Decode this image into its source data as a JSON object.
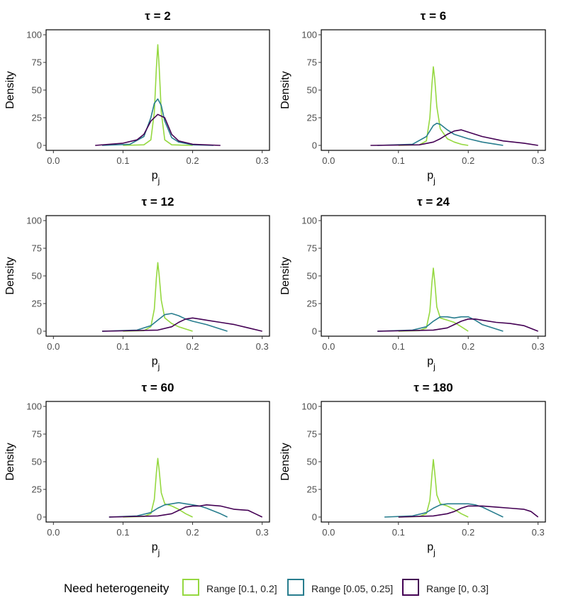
{
  "chart_data": [
    {
      "type": "line",
      "title": "τ = 2",
      "xlabel": "p",
      "xlabel_sub": "j",
      "ylabel": "Density",
      "xlim": [
        0,
        0.3
      ],
      "ylim": [
        0,
        100
      ],
      "xticks": [
        "0.0",
        "0.1",
        "0.2",
        "0.3"
      ],
      "yticks": [
        "0",
        "25",
        "50",
        "75",
        "100"
      ],
      "series": [
        {
          "name": "Range [0.1, 0.2]",
          "x": [
            0.1,
            0.13,
            0.14,
            0.145,
            0.148,
            0.15,
            0.152,
            0.155,
            0.16,
            0.17,
            0.2
          ],
          "y": [
            0,
            0.5,
            5,
            30,
            70,
            91,
            70,
            30,
            5,
            0.5,
            0
          ]
        },
        {
          "name": "Range [0.05, 0.25]",
          "x": [
            0.07,
            0.11,
            0.13,
            0.14,
            0.145,
            0.15,
            0.155,
            0.16,
            0.17,
            0.18,
            0.2,
            0.23
          ],
          "y": [
            0,
            1,
            8,
            25,
            38,
            42,
            36,
            22,
            7,
            3,
            0.5,
            0
          ]
        },
        {
          "name": "Range [0, 0.3]",
          "x": [
            0.06,
            0.1,
            0.12,
            0.13,
            0.14,
            0.15,
            0.16,
            0.17,
            0.18,
            0.2,
            0.24
          ],
          "y": [
            0,
            2,
            5,
            10,
            22,
            28,
            25,
            10,
            4,
            1,
            0
          ]
        }
      ]
    },
    {
      "type": "line",
      "title": "τ = 6",
      "xlabel": "p",
      "xlabel_sub": "j",
      "ylabel": "Density",
      "xlim": [
        0,
        0.3
      ],
      "ylim": [
        0,
        100
      ],
      "xticks": [
        "0.0",
        "0.1",
        "0.2",
        "0.3"
      ],
      "yticks": [
        "0",
        "25",
        "50",
        "75",
        "100"
      ],
      "series": [
        {
          "name": "Range [0.1, 0.2]",
          "x": [
            0.1,
            0.13,
            0.14,
            0.145,
            0.148,
            0.15,
            0.152,
            0.155,
            0.16,
            0.17,
            0.18,
            0.19,
            0.2
          ],
          "y": [
            0,
            0.5,
            4,
            25,
            55,
            71,
            60,
            35,
            15,
            6,
            3,
            1,
            0
          ]
        },
        {
          "name": "Range [0.05, 0.25]",
          "x": [
            0.07,
            0.12,
            0.14,
            0.15,
            0.155,
            0.16,
            0.17,
            0.18,
            0.2,
            0.22,
            0.24,
            0.25
          ],
          "y": [
            0,
            1,
            8,
            18,
            20,
            19,
            14,
            10,
            6,
            3,
            1,
            0
          ]
        },
        {
          "name": "Range [0, 0.3]",
          "x": [
            0.06,
            0.13,
            0.15,
            0.16,
            0.17,
            0.18,
            0.19,
            0.2,
            0.22,
            0.25,
            0.28,
            0.3
          ],
          "y": [
            0,
            0.5,
            3,
            6,
            10,
            13,
            14,
            12,
            8,
            4,
            2,
            0
          ]
        }
      ]
    },
    {
      "type": "line",
      "title": "τ = 12",
      "xlabel": "p",
      "xlabel_sub": "j",
      "ylabel": "Density",
      "xlim": [
        0,
        0.3
      ],
      "ylim": [
        0,
        100
      ],
      "xticks": [
        "0.0",
        "0.1",
        "0.2",
        "0.3"
      ],
      "yticks": [
        "0",
        "25",
        "50",
        "75",
        "100"
      ],
      "series": [
        {
          "name": "Range [0.1, 0.2]",
          "x": [
            0.1,
            0.13,
            0.14,
            0.145,
            0.148,
            0.15,
            0.152,
            0.155,
            0.16,
            0.17,
            0.18,
            0.19,
            0.2
          ],
          "y": [
            0,
            0.5,
            4,
            20,
            48,
            62,
            50,
            28,
            12,
            7,
            4,
            2,
            0
          ]
        },
        {
          "name": "Range [0.05, 0.25]",
          "x": [
            0.07,
            0.12,
            0.14,
            0.15,
            0.16,
            0.17,
            0.18,
            0.19,
            0.2,
            0.22,
            0.24,
            0.25
          ],
          "y": [
            0,
            1,
            5,
            10,
            15,
            16,
            14,
            11,
            9,
            6,
            2,
            0
          ]
        },
        {
          "name": "Range [0, 0.3]",
          "x": [
            0.07,
            0.15,
            0.17,
            0.18,
            0.19,
            0.2,
            0.21,
            0.22,
            0.24,
            0.26,
            0.28,
            0.3
          ],
          "y": [
            0,
            1,
            4,
            8,
            11,
            12,
            11,
            10,
            8,
            6,
            3,
            0
          ]
        }
      ]
    },
    {
      "type": "line",
      "title": "τ = 24",
      "xlabel": "p",
      "xlabel_sub": "j",
      "ylabel": "Density",
      "xlim": [
        0,
        0.3
      ],
      "ylim": [
        0,
        100
      ],
      "xticks": [
        "0.0",
        "0.1",
        "0.2",
        "0.3"
      ],
      "yticks": [
        "0",
        "25",
        "50",
        "75",
        "100"
      ],
      "series": [
        {
          "name": "Range [0.1, 0.2]",
          "x": [
            0.1,
            0.13,
            0.14,
            0.145,
            0.148,
            0.15,
            0.152,
            0.155,
            0.16,
            0.17,
            0.18,
            0.19,
            0.2
          ],
          "y": [
            0,
            0.5,
            3,
            18,
            44,
            57,
            45,
            22,
            12,
            10,
            8,
            4,
            0
          ]
        },
        {
          "name": "Range [0.05, 0.25]",
          "x": [
            0.07,
            0.12,
            0.14,
            0.15,
            0.16,
            0.17,
            0.18,
            0.19,
            0.2,
            0.21,
            0.22,
            0.24,
            0.25
          ],
          "y": [
            0,
            1,
            4,
            9,
            13,
            13,
            12,
            13,
            13,
            10,
            6,
            2,
            0
          ]
        },
        {
          "name": "Range [0, 0.3]",
          "x": [
            0.07,
            0.15,
            0.17,
            0.18,
            0.19,
            0.2,
            0.21,
            0.22,
            0.24,
            0.26,
            0.28,
            0.3
          ],
          "y": [
            0,
            1,
            3,
            6,
            9,
            11,
            11,
            10,
            8,
            7,
            5,
            0
          ]
        }
      ]
    },
    {
      "type": "line",
      "title": "τ = 60",
      "xlabel": "p",
      "xlabel_sub": "j",
      "ylabel": "Density",
      "xlim": [
        0,
        0.3
      ],
      "ylim": [
        0,
        100
      ],
      "xticks": [
        "0.0",
        "0.1",
        "0.2",
        "0.3"
      ],
      "yticks": [
        "0",
        "25",
        "50",
        "75",
        "100"
      ],
      "series": [
        {
          "name": "Range [0.1, 0.2]",
          "x": [
            0.1,
            0.13,
            0.14,
            0.145,
            0.148,
            0.15,
            0.152,
            0.155,
            0.16,
            0.17,
            0.18,
            0.19,
            0.2
          ],
          "y": [
            0,
            0.5,
            3,
            16,
            40,
            53,
            42,
            22,
            12,
            10,
            7,
            3,
            0
          ]
        },
        {
          "name": "Range [0.05, 0.25]",
          "x": [
            0.08,
            0.12,
            0.14,
            0.15,
            0.16,
            0.17,
            0.18,
            0.19,
            0.2,
            0.21,
            0.22,
            0.24,
            0.25
          ],
          "y": [
            0,
            1,
            4,
            8,
            11,
            12,
            13,
            12,
            11,
            10,
            8,
            3,
            0
          ]
        },
        {
          "name": "Range [0, 0.3]",
          "x": [
            0.08,
            0.15,
            0.17,
            0.18,
            0.19,
            0.2,
            0.21,
            0.22,
            0.24,
            0.26,
            0.28,
            0.29,
            0.3
          ],
          "y": [
            0,
            1,
            3,
            6,
            9,
            10,
            10,
            11,
            10,
            7,
            6,
            3,
            0
          ]
        }
      ]
    },
    {
      "type": "line",
      "title": "τ = 180",
      "xlabel": "p",
      "xlabel_sub": "j",
      "ylabel": "Density",
      "xlim": [
        0,
        0.3
      ],
      "ylim": [
        0,
        100
      ],
      "xticks": [
        "0.0",
        "0.1",
        "0.2",
        "0.3"
      ],
      "yticks": [
        "0",
        "25",
        "50",
        "75",
        "100"
      ],
      "series": [
        {
          "name": "Range [0.1, 0.2]",
          "x": [
            0.1,
            0.13,
            0.14,
            0.145,
            0.148,
            0.15,
            0.152,
            0.155,
            0.16,
            0.17,
            0.18,
            0.19,
            0.2
          ],
          "y": [
            0,
            0.5,
            3,
            15,
            38,
            52,
            40,
            20,
            12,
            10,
            7,
            3,
            0
          ]
        },
        {
          "name": "Range [0.05, 0.25]",
          "x": [
            0.08,
            0.12,
            0.14,
            0.15,
            0.16,
            0.17,
            0.18,
            0.19,
            0.2,
            0.21,
            0.22,
            0.24,
            0.25
          ],
          "y": [
            0,
            1,
            4,
            8,
            11,
            12,
            12,
            12,
            12,
            11,
            9,
            3,
            0
          ]
        },
        {
          "name": "Range [0, 0.3]",
          "x": [
            0.1,
            0.15,
            0.17,
            0.18,
            0.19,
            0.2,
            0.21,
            0.22,
            0.24,
            0.26,
            0.28,
            0.29,
            0.3
          ],
          "y": [
            0,
            1,
            3,
            5,
            8,
            10,
            10,
            10,
            9,
            8,
            7,
            5,
            0
          ]
        }
      ]
    }
  ],
  "legend": {
    "title": "Need heterogeneity",
    "items": [
      {
        "label": "Range [0.1, 0.2]",
        "color": "#95d840"
      },
      {
        "label": "Range [0.05, 0.25]",
        "color": "#287d8e"
      },
      {
        "label": "Range [0, 0.3]",
        "color": "#440154"
      }
    ]
  },
  "colors": {
    "series": [
      "#95d840",
      "#287d8e",
      "#440154"
    ],
    "axis": "#000000",
    "tick_text": "#4d4d4d"
  }
}
